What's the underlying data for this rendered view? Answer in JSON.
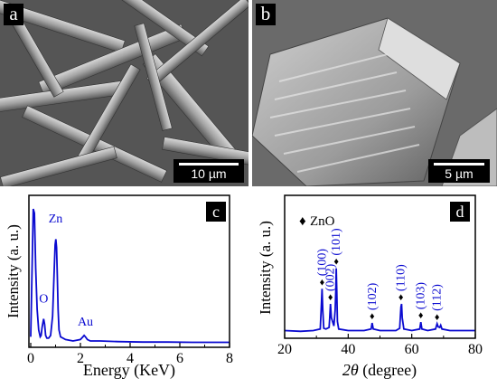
{
  "panels": {
    "a": {
      "label": "a",
      "scale_text": "10 µm"
    },
    "b": {
      "label": "b",
      "scale_text": "5 µm"
    },
    "c": {
      "label": "c"
    },
    "d": {
      "label": "d"
    }
  },
  "colors": {
    "accent": "#0a0ad0",
    "axis": "#000000"
  },
  "chart_data": [
    {
      "type": "line",
      "panel": "c",
      "xlabel": "Energy (KeV)",
      "ylabel": "Intensity (a. u.)",
      "xlim": [
        0,
        8
      ],
      "xticks": [
        "0",
        "2",
        "4",
        "6",
        "8"
      ],
      "series": [
        {
          "x": [
            0.0,
            0.1,
            0.15,
            0.2,
            0.26,
            0.32,
            0.38,
            0.42,
            0.46,
            0.52,
            0.56,
            0.6,
            0.65,
            0.72,
            0.8,
            0.88,
            0.94,
            0.98,
            1.01,
            1.04,
            1.07,
            1.1,
            1.14,
            1.2,
            1.4,
            1.7,
            2.0,
            2.1,
            2.15,
            2.2,
            2.28,
            2.4,
            2.8,
            3.5,
            4.5,
            5.5,
            6.5,
            7.5,
            8.0
          ],
          "y": [
            0.05,
            0.98,
            0.95,
            0.55,
            0.25,
            0.1,
            0.05,
            0.06,
            0.12,
            0.18,
            0.14,
            0.06,
            0.04,
            0.04,
            0.06,
            0.2,
            0.5,
            0.72,
            0.76,
            0.7,
            0.5,
            0.25,
            0.1,
            0.05,
            0.03,
            0.02,
            0.03,
            0.05,
            0.06,
            0.05,
            0.03,
            0.02,
            0.02,
            0.015,
            0.012,
            0.012,
            0.01,
            0.01,
            0.01
          ]
        }
      ],
      "annotations": [
        {
          "text": "Zn",
          "x": 1.0,
          "y": 0.88
        },
        {
          "text": "O",
          "x": 0.52,
          "y": 0.3
        },
        {
          "text": "Au",
          "x": 2.2,
          "y": 0.13
        }
      ]
    },
    {
      "type": "line",
      "panel": "d",
      "xlabel": "2θ (degree)",
      "xlabel_parts": {
        "italic": "2θ",
        "rest": " (degree)"
      },
      "ylabel": "Intensity (a. u.)",
      "xlim": [
        20,
        80
      ],
      "xticks": [
        "20",
        "40",
        "60",
        "80"
      ],
      "legend": {
        "marker": "♦",
        "label": "ZnO"
      },
      "series": [
        {
          "x": [
            20,
            25,
            29,
            31.2,
            31.5,
            31.77,
            32.0,
            32.3,
            33,
            34.0,
            34.2,
            34.42,
            34.7,
            35.5,
            35.9,
            36.1,
            36.25,
            36.4,
            36.6,
            37,
            40,
            45,
            47.2,
            47.54,
            47.9,
            50,
            55,
            56.2,
            56.6,
            56.8,
            57.0,
            57.5,
            60,
            62.5,
            62.86,
            63.2,
            65,
            67.5,
            67.96,
            68.3,
            68.8,
            69.1,
            69.5,
            72,
            76,
            80
          ],
          "y": [
            0.03,
            0.02,
            0.03,
            0.05,
            0.3,
            0.58,
            0.3,
            0.06,
            0.05,
            0.07,
            0.2,
            0.38,
            0.2,
            0.09,
            0.3,
            0.55,
            0.85,
            0.55,
            0.15,
            0.05,
            0.03,
            0.03,
            0.05,
            0.13,
            0.05,
            0.03,
            0.03,
            0.06,
            0.34,
            0.38,
            0.2,
            0.05,
            0.03,
            0.05,
            0.14,
            0.05,
            0.03,
            0.05,
            0.12,
            0.08,
            0.07,
            0.1,
            0.05,
            0.03,
            0.03,
            0.03
          ]
        }
      ],
      "annotations": [
        {
          "text": "(100)",
          "x": 31.77,
          "y": 0.58
        },
        {
          "text": "(002)",
          "x": 34.42,
          "y": 0.38
        },
        {
          "text": "(101)",
          "x": 36.25,
          "y": 0.85
        },
        {
          "text": "(102)",
          "x": 47.54,
          "y": 0.13
        },
        {
          "text": "(110)",
          "x": 56.6,
          "y": 0.38
        },
        {
          "text": "(103)",
          "x": 62.86,
          "y": 0.14
        },
        {
          "text": "(112)",
          "x": 67.96,
          "y": 0.12
        }
      ]
    }
  ]
}
